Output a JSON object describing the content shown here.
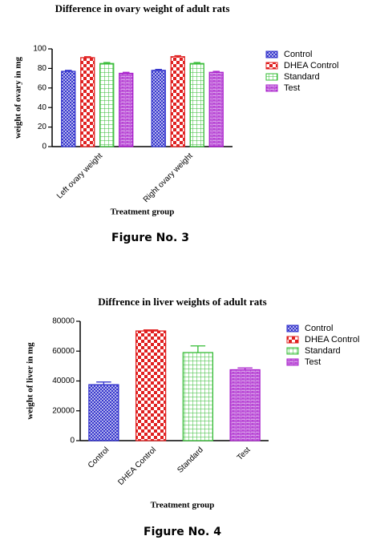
{
  "chart_data": [
    {
      "type": "grouped_bar",
      "title": "Difference in ovary weight of adult rats",
      "y_label": "weight of ovary in mg",
      "x_label": "Treatment group",
      "caption": "Figure No. 3",
      "categories": [
        "Left ovary weight",
        "Right ovary weight"
      ],
      "series": [
        {
          "name": "Control",
          "color": "#3333cc",
          "values": [
            77,
            78
          ],
          "errors": [
            1,
            1
          ]
        },
        {
          "name": "DHEA Control",
          "color": "#e02020",
          "values": [
            91,
            92
          ],
          "errors": [
            1,
            1
          ]
        },
        {
          "name": "Standard",
          "color": "#33bb33",
          "values": [
            85,
            85
          ],
          "errors": [
            1,
            1
          ]
        },
        {
          "name": "Test",
          "color": "#aa22cc",
          "values": [
            75,
            76
          ],
          "errors": [
            1,
            1
          ]
        }
      ],
      "ylim": [
        0,
        100
      ],
      "yticks": [
        0,
        20,
        40,
        60,
        80,
        100
      ]
    },
    {
      "type": "bar",
      "title": "Diffrence in liver weights of adult rats",
      "y_label": "weight of liver in mg",
      "x_label": "Treatment group",
      "caption": "Figure No. 4",
      "categories": [
        "Control",
        "DHEA Control",
        "Standard",
        "Test"
      ],
      "values": [
        37500,
        73500,
        59000,
        47500
      ],
      "errors": [
        1800,
        700,
        4500,
        1200
      ],
      "colors": [
        "#3333cc",
        "#e02020",
        "#33bb33",
        "#aa22cc"
      ],
      "ylim": [
        0,
        80000
      ],
      "yticks": [
        0,
        20000,
        40000,
        60000,
        80000
      ]
    }
  ]
}
